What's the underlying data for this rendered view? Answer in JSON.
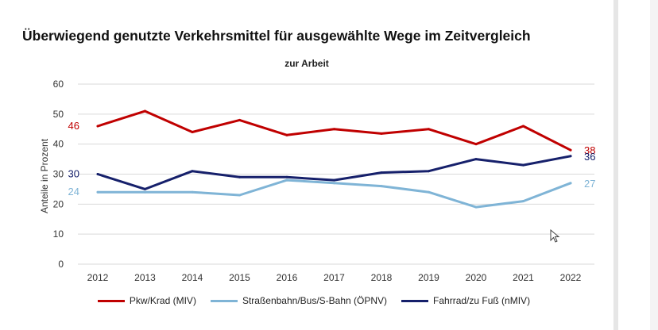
{
  "colors": {
    "miv": "#c00000",
    "oepnv": "#7fb4d6",
    "nmiv": "#16206b",
    "grid": "#d9d9d9",
    "axis_text": "#333333"
  },
  "chart_data": {
    "type": "line",
    "title": "Überwiegend genutzte Verkehrsmittel für ausgewählte Wege im Zeitvergleich",
    "subtitle": "zur Arbeit",
    "xlabel": "",
    "ylabel": "Anteile in Prozent",
    "ylim": [
      0,
      60
    ],
    "yticks": [
      "0",
      "10",
      "20",
      "30",
      "40",
      "50",
      "60"
    ],
    "grid": true,
    "legend_position": "bottom",
    "x": [
      "2012",
      "2013",
      "2014",
      "2015",
      "2016",
      "2017",
      "2018",
      "2019",
      "2020",
      "2021",
      "2022"
    ],
    "series": [
      {
        "key": "miv",
        "name": "Pkw/Krad (MIV)",
        "values": [
          46,
          51,
          44,
          48,
          43,
          45,
          43.5,
          45,
          40,
          46,
          38
        ],
        "start_label": "46",
        "end_label": "38"
      },
      {
        "key": "oepnv",
        "name": "Straßenbahn/Bus/S-Bahn (ÖPNV)",
        "values": [
          24,
          24,
          24,
          23,
          28,
          27,
          26,
          24,
          19,
          21,
          27
        ],
        "start_label": "24",
        "end_label": "27"
      },
      {
        "key": "nmiv",
        "name": "Fahrrad/zu Fuß (nMIV)",
        "values": [
          30,
          25,
          31,
          29,
          29,
          28,
          30.5,
          31,
          35,
          33,
          36
        ],
        "start_label": "30",
        "end_label": "36"
      }
    ]
  }
}
